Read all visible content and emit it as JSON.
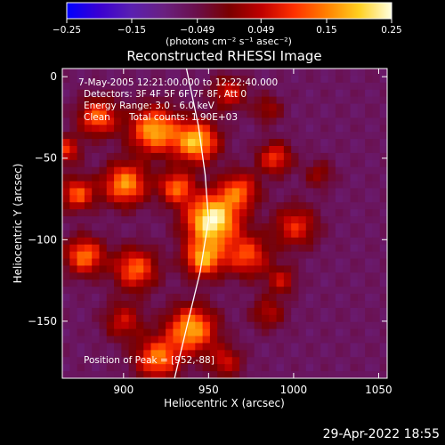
{
  "footer": {
    "timestamp": "29-Apr-2022 18:55"
  },
  "chart_data": {
    "type": "heatmap",
    "title": "Reconstructed RHESSI Image",
    "xlabel": "Heliocentric X (arcsec)",
    "ylabel": "Heliocentric Y (arcsec)",
    "xlim": [
      864,
      1055
    ],
    "ylim": [
      -185,
      5
    ],
    "xticks": [
      900,
      950,
      1000,
      1050
    ],
    "yticks": [
      0,
      -50,
      -100,
      -150
    ],
    "xtick_labels": [
      "900",
      "950",
      "1000",
      "1050"
    ],
    "ytick_labels": [
      "0",
      "−50",
      "−100",
      "−150"
    ],
    "colorbar": {
      "range": [
        -0.25,
        0.25
      ],
      "ticks": [
        -0.25,
        -0.15,
        -0.049,
        0.049,
        0.15,
        0.25
      ],
      "tick_labels": [
        "−0.25",
        "−0.15",
        "−0.049",
        "0.049",
        "0.15",
        "0.25"
      ],
      "label": "(photons cm⁻² s⁻¹ asec⁻²)",
      "colors": [
        "#0000ff",
        "#3a00d2",
        "#5a20b0",
        "#6a2080",
        "#6a0f4a",
        "#7a0000",
        "#c00000",
        "#ff3000",
        "#ff8000",
        "#ffd020",
        "#ffffe0"
      ]
    },
    "annotations": [
      "7-May-2005 12:21:00.000 to 12:22:40.000",
      "Detectors: 3F 4F 5F 6F 7F 8F, Att 0",
      "Energy Range: 3.0 - 6.0 keV",
      "Clean",
      "Total counts: 1.90E+03"
    ],
    "peak_label": "Position of Peak = [952,-88]",
    "peak_position": [
      952,
      -88
    ],
    "limb_curve": [
      [
        937,
        5
      ],
      [
        944,
        -30
      ],
      [
        948,
        -60
      ],
      [
        950,
        -88
      ],
      [
        945,
        -120
      ],
      [
        938,
        -150
      ],
      [
        930,
        -185
      ]
    ],
    "blobs": [
      [
        952,
        -88,
        11,
        1.0
      ],
      [
        943,
        -40,
        9,
        0.82
      ],
      [
        918,
        -33,
        10,
        0.78
      ],
      [
        885,
        -25,
        8,
        0.62
      ],
      [
        901,
        -66,
        9,
        0.74
      ],
      [
        873,
        -72,
        7,
        0.6
      ],
      [
        931,
        -68,
        7,
        0.62
      ],
      [
        968,
        -70,
        8,
        0.56
      ],
      [
        989,
        -50,
        7,
        0.52
      ],
      [
        1001,
        -92,
        9,
        0.48
      ],
      [
        877,
        -110,
        8,
        0.66
      ],
      [
        907,
        -118,
        9,
        0.62
      ],
      [
        947,
        -112,
        8,
        0.72
      ],
      [
        973,
        -110,
        9,
        0.55
      ],
      [
        940,
        -155,
        10,
        0.78
      ],
      [
        920,
        -173,
        9,
        0.66
      ],
      [
        900,
        -150,
        8,
        0.4
      ],
      [
        985,
        -145,
        7,
        0.34
      ],
      [
        985,
        -20,
        6,
        0.3
      ],
      [
        962,
        -10,
        7,
        0.45
      ],
      [
        1015,
        -60,
        6,
        0.28
      ],
      [
        993,
        -125,
        6,
        0.38
      ],
      [
        960,
        -175,
        7,
        0.4
      ],
      [
        866,
        -45,
        6,
        0.5
      ]
    ]
  }
}
